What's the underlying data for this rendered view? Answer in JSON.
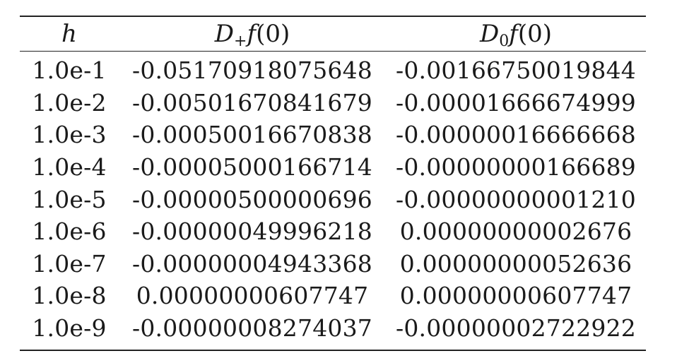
{
  "table": {
    "headers": {
      "h": {
        "main": "h"
      },
      "forward": {
        "main": "D",
        "sub": "+",
        "func": "f",
        "arg": "(0)"
      },
      "central": {
        "main": "D",
        "sub": "0",
        "func": "f",
        "arg": "(0)"
      }
    },
    "rows": [
      [
        "1.0e-1",
        "-0.05170918075648",
        "-0.00166750019844"
      ],
      [
        "1.0e-2",
        "-0.00501670841679",
        "-0.00001666674999"
      ],
      [
        "1.0e-3",
        "-0.00050016670838",
        "-0.00000016666668"
      ],
      [
        "1.0e-4",
        "-0.00005000166714",
        "-0.00000000166689"
      ],
      [
        "1.0e-5",
        "-0.00000500000696",
        "-0.00000000001210"
      ],
      [
        "1.0e-6",
        "-0.00000049996218",
        "0.00000000002676"
      ],
      [
        "1.0e-7",
        "-0.00000004943368",
        "0.00000000052636"
      ],
      [
        "1.0e-8",
        "0.00000000607747",
        "0.00000000607747"
      ],
      [
        "1.0e-9",
        "-0.00000008274037",
        "-0.00000002722922"
      ]
    ]
  }
}
